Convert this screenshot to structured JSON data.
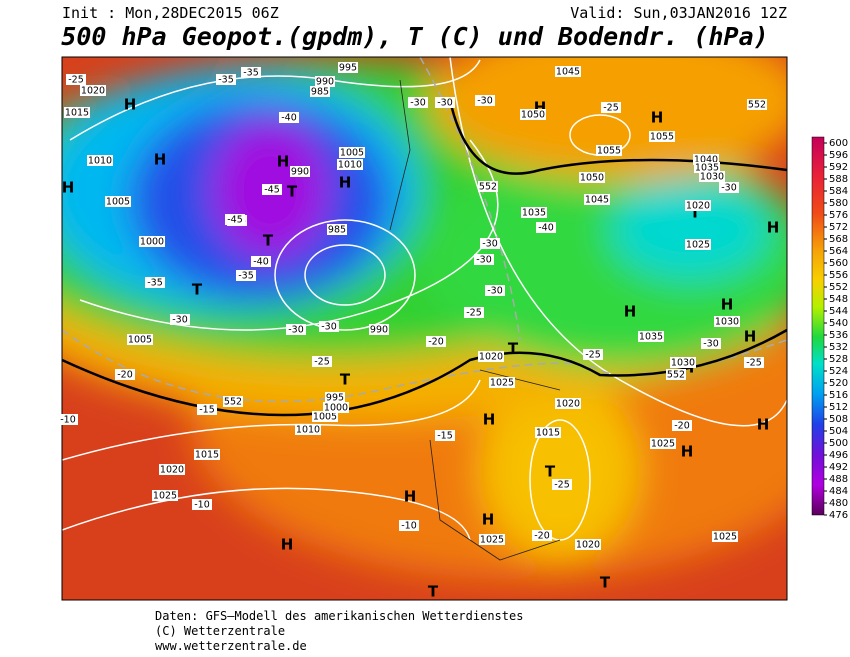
{
  "header": {
    "init": "Init : Mon,28DEC2015 06Z",
    "valid": "Valid: Sun,03JAN2016 12Z",
    "title": "500 hPa Geopot.(gpdm), T (C) und Bodendr. (hPa)"
  },
  "colorbar": {
    "labels": [
      600,
      596,
      592,
      588,
      584,
      580,
      576,
      572,
      568,
      564,
      560,
      556,
      552,
      548,
      544,
      540,
      536,
      532,
      528,
      524,
      520,
      516,
      512,
      508,
      504,
      500,
      496,
      492,
      488,
      484,
      480,
      476
    ]
  },
  "labels": [
    "H",
    "H",
    "H",
    "H",
    "H",
    "H",
    "H",
    "H",
    "H",
    "H",
    "H",
    "H",
    "H",
    "H",
    "H",
    "H",
    "H",
    "H",
    "T",
    "T",
    "T",
    "T",
    "T",
    "T",
    "T",
    "T",
    "T",
    "995",
    "990",
    "985",
    "1020",
    "1015",
    "1010",
    "1005",
    "1000",
    "1005",
    "990",
    "1005",
    "1010",
    "985",
    "990",
    "985",
    "1045",
    "1050",
    "1055",
    "1055",
    "1050",
    "1045",
    "1040",
    "1035",
    "1030",
    "1020",
    "1025",
    "1035",
    "1035",
    "1030",
    "1030",
    "1020",
    "1025",
    "1020",
    "1015",
    "1025",
    "1020",
    "1025",
    "1025",
    "1025",
    "1020",
    "1015",
    "1010",
    "1005",
    "1000",
    "995",
    "-25",
    "-35",
    "-35",
    "-40",
    "-45",
    "-45",
    "-40",
    "-35",
    "-35",
    "-30",
    "-30",
    "-30",
    "-25",
    "-20",
    "-15",
    "-10",
    "-30",
    "-30",
    "-30",
    "-25",
    "-30",
    "-40",
    "-30",
    "-30",
    "-30",
    "-25",
    "-20",
    "-25",
    "-30",
    "-25",
    "-15",
    "-10",
    "-10",
    "-25",
    "-20",
    "-20",
    "552",
    "552",
    "552",
    "552"
  ],
  "footer": [
    "Daten: GFS–Modell des amerikanischen Wetterdienstes",
    "(C) Wetterzentrale",
    "www.wetterzentrale.de"
  ]
}
